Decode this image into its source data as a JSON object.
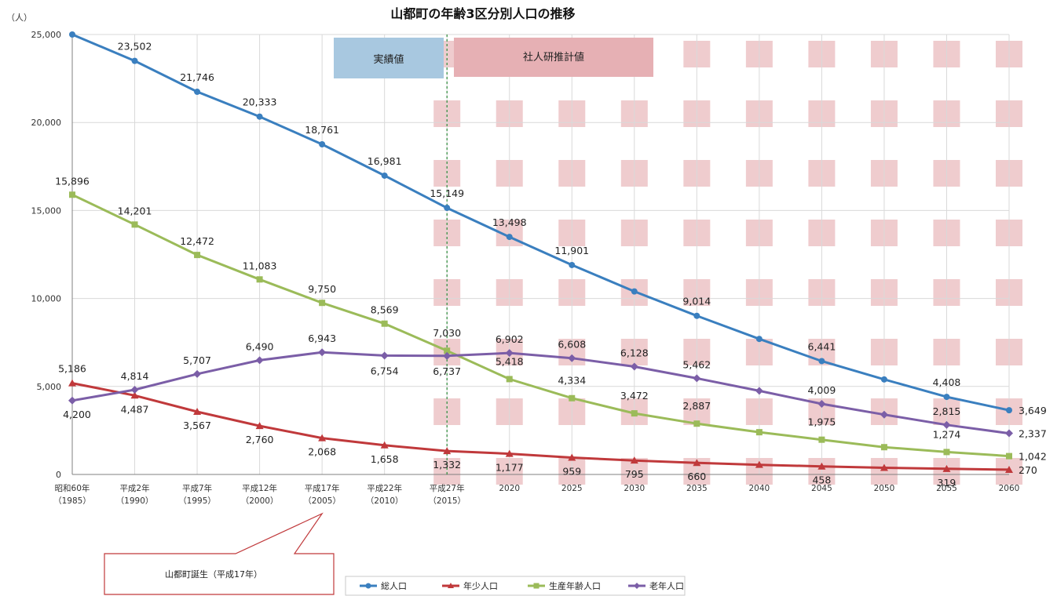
{
  "chart_data": {
    "type": "line",
    "title": "山都町の年齢3区分別人口の推移",
    "ylabel": "（人）",
    "ylim": [
      0,
      25000
    ],
    "yticks": [
      0,
      5000,
      10000,
      15000,
      20000,
      25000
    ],
    "ytick_labels": [
      "0",
      "5,000",
      "10,000",
      "15,000",
      "20,000",
      "25,000"
    ],
    "categories": [
      {
        "label": "昭和60年",
        "sub": "（1985）"
      },
      {
        "label": "平成2年",
        "sub": "（1990）"
      },
      {
        "label": "平成7年",
        "sub": "（1995）"
      },
      {
        "label": "平成12年",
        "sub": "（2000）"
      },
      {
        "label": "平成17年",
        "sub": "（2005）"
      },
      {
        "label": "平成22年",
        "sub": "（2010）"
      },
      {
        "label": "平成27年",
        "sub": "（2015）"
      },
      {
        "label": "2020",
        "sub": ""
      },
      {
        "label": "2025",
        "sub": ""
      },
      {
        "label": "2030",
        "sub": ""
      },
      {
        "label": "2035",
        "sub": ""
      },
      {
        "label": "2040",
        "sub": ""
      },
      {
        "label": "2045",
        "sub": ""
      },
      {
        "label": "2050",
        "sub": ""
      },
      {
        "label": "2055",
        "sub": ""
      },
      {
        "label": "2060",
        "sub": ""
      }
    ],
    "series": [
      {
        "name": "総人口",
        "color": "#3a7fbf",
        "marker": "circle",
        "values": [
          25000,
          23502,
          21746,
          20333,
          18761,
          16981,
          15149,
          13498,
          11901,
          10400,
          9014,
          7700,
          6441,
          5400,
          4408,
          3649
        ],
        "labels": [
          "",
          "23,502",
          "21,746",
          "20,333",
          "18,761",
          "16,981",
          "15,149",
          "13,498",
          "11,901",
          "",
          "9,014",
          "",
          "6,441",
          "",
          "4,408",
          "3,649"
        ]
      },
      {
        "name": "年少人口",
        "color": "#c0393b",
        "marker": "triangle",
        "values": [
          5186,
          4487,
          3567,
          2760,
          2068,
          1658,
          1332,
          1177,
          959,
          795,
          660,
          550,
          458,
          380,
          319,
          270
        ],
        "labels": [
          "5,186",
          "4,487",
          "3,567",
          "2,760",
          "2,068",
          "1,658",
          "1,332",
          "1,177",
          "959",
          "795",
          "660",
          "",
          "458",
          "",
          "319",
          "270"
        ]
      },
      {
        "name": "生産年齢人口",
        "color": "#9bbb59",
        "marker": "square",
        "values": [
          15896,
          14201,
          12472,
          11083,
          9750,
          8569,
          7030,
          5418,
          4334,
          3472,
          2887,
          2400,
          1975,
          1550,
          1274,
          1042
        ],
        "labels": [
          "15,896",
          "14,201",
          "12,472",
          "11,083",
          "9,750",
          "8,569",
          "7,030",
          "5,418",
          "4,334",
          "3,472",
          "2,887",
          "",
          "1,975",
          "",
          "1,274",
          "1,042"
        ]
      },
      {
        "name": "老年人口",
        "color": "#7b5ea7",
        "marker": "diamond",
        "values": [
          4200,
          4814,
          5707,
          6490,
          6943,
          6754,
          6737,
          6902,
          6608,
          6128,
          5462,
          4750,
          4009,
          3400,
          2815,
          2337
        ],
        "labels": [
          "4,200",
          "4,814",
          "5,707",
          "6,490",
          "6,943",
          "6,754",
          "6,737",
          "6,902",
          "6,608",
          "6,128",
          "5,462",
          "",
          "4,009",
          "",
          "2,815",
          "2,337"
        ]
      }
    ],
    "legend": "bottom-center",
    "regions": {
      "actual_label": "実績値",
      "projection_label": "社人研推計値",
      "actual_color": "#a8c8e0",
      "projection_color": "#e6b0b4",
      "divider_after": "平成27年"
    },
    "annotation": "山都町誕生（平成17年）",
    "annotation_target": "平成17年"
  }
}
